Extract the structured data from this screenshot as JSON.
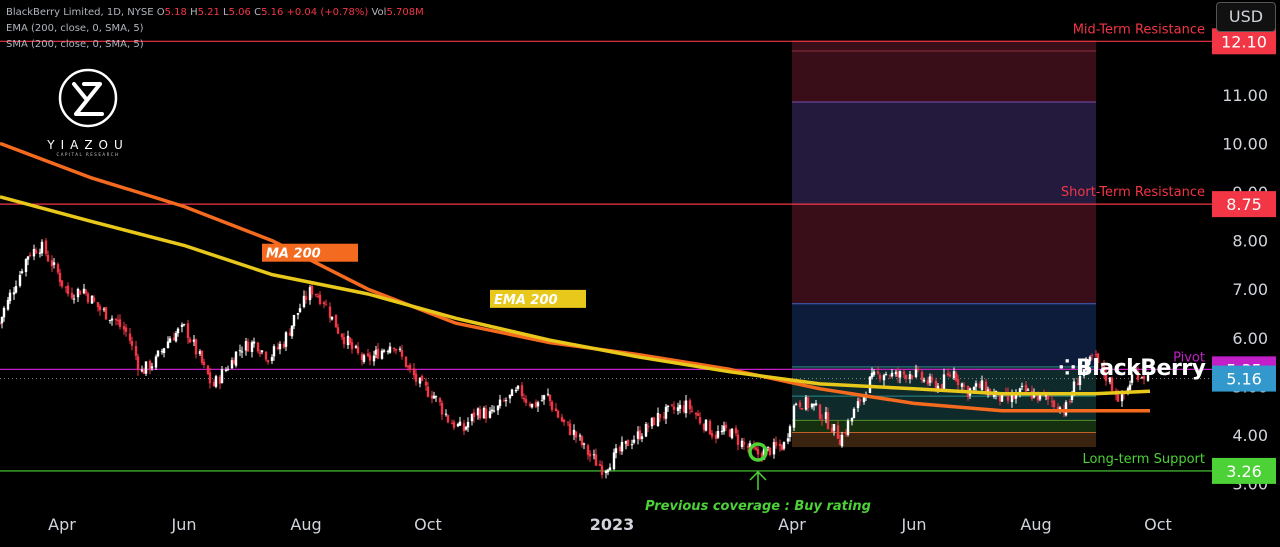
{
  "header": {
    "symbol": "BlackBerry Limited, 1D, NYSE",
    "o_label": "O",
    "o_value": "5.18",
    "h_label": "H",
    "h_value": "5.21",
    "l_label": "L",
    "l_value": "5.06",
    "c_label": "C",
    "c_value": "5.16",
    "change": "+0.04 (+0.78%)",
    "vol_label": "Vol",
    "vol_value": "5.708M",
    "ema_label": "EMA (200, close, 0, SMA, 5)",
    "sma_label": "SMA (200, close, 0, SMA, 5)"
  },
  "currency": "USD",
  "watermark": {
    "name": "YIAZOU",
    "sub": "CAPITAL RESEARCH"
  },
  "company_logo_text": "BlackBerry",
  "colors": {
    "background": "#000000",
    "up": "#ffffff",
    "down": "#f23645",
    "ema": "#e8c81a",
    "ma": "#f46a1e",
    "resistance": "#f23645",
    "support": "#4cd137",
    "pivot": "#c21fc8"
  },
  "chart_data": {
    "type": "candlestick",
    "x_ticks": [
      "Apr",
      "Jun",
      "Aug",
      "Oct",
      "2023",
      "Apr",
      "Jun",
      "Aug",
      "Oct"
    ],
    "x_tick_dates": [
      "2022-04-01",
      "2022-06-01",
      "2022-08-01",
      "2022-10-01",
      "2023-01-01",
      "2023-04-01",
      "2023-06-01",
      "2023-08-01",
      "2023-10-01"
    ],
    "y_ticks": [
      "3.00",
      "4.00",
      "5.00",
      "6.00",
      "7.00",
      "8.00",
      "9.00",
      "10.00",
      "11.00"
    ],
    "y_tick_values": [
      3,
      4,
      5,
      6,
      7,
      8,
      9,
      10,
      11
    ],
    "ylim": [
      2.6,
      12.95
    ],
    "xlim": [
      "2022-03-01",
      "2023-10-28"
    ],
    "close_path": [
      [
        "2022-03-01",
        6.3
      ],
      [
        "2022-03-08",
        7.0
      ],
      [
        "2022-03-15",
        7.7
      ],
      [
        "2022-03-22",
        7.9
      ],
      [
        "2022-03-29",
        7.4
      ],
      [
        "2022-04-05",
        6.9
      ],
      [
        "2022-04-12",
        7.0
      ],
      [
        "2022-04-20",
        6.6
      ],
      [
        "2022-04-27",
        6.4
      ],
      [
        "2022-05-04",
        6.1
      ],
      [
        "2022-05-11",
        5.3
      ],
      [
        "2022-05-18",
        5.5
      ],
      [
        "2022-05-25",
        6.0
      ],
      [
        "2022-06-02",
        6.2
      ],
      [
        "2022-06-09",
        5.6
      ],
      [
        "2022-06-16",
        5.0
      ],
      [
        "2022-06-23",
        5.4
      ],
      [
        "2022-06-30",
        5.8
      ],
      [
        "2022-07-07",
        5.9
      ],
      [
        "2022-07-14",
        5.6
      ],
      [
        "2022-07-21",
        5.9
      ],
      [
        "2022-07-28",
        6.5
      ],
      [
        "2022-08-04",
        7.0
      ],
      [
        "2022-08-10",
        6.8
      ],
      [
        "2022-08-17",
        6.2
      ],
      [
        "2022-08-24",
        5.8
      ],
      [
        "2022-08-31",
        5.5
      ],
      [
        "2022-09-07",
        5.7
      ],
      [
        "2022-09-14",
        5.9
      ],
      [
        "2022-09-21",
        5.4
      ],
      [
        "2022-09-28",
        5.0
      ],
      [
        "2022-10-05",
        4.8
      ],
      [
        "2022-10-12",
        4.3
      ],
      [
        "2022-10-19",
        4.1
      ],
      [
        "2022-10-26",
        4.5
      ],
      [
        "2022-11-02",
        4.4
      ],
      [
        "2022-11-09",
        4.7
      ],
      [
        "2022-11-16",
        4.9
      ],
      [
        "2022-11-23",
        4.6
      ],
      [
        "2022-11-30",
        4.8
      ],
      [
        "2022-12-07",
        4.3
      ],
      [
        "2022-12-14",
        4.0
      ],
      [
        "2022-12-21",
        3.6
      ],
      [
        "2022-12-28",
        3.3
      ],
      [
        "2023-01-04",
        3.6
      ],
      [
        "2023-01-11",
        3.9
      ],
      [
        "2023-01-18",
        4.1
      ],
      [
        "2023-01-25",
        4.4
      ],
      [
        "2023-02-01",
        4.5
      ],
      [
        "2023-02-08",
        4.6
      ],
      [
        "2023-02-15",
        4.3
      ],
      [
        "2023-02-22",
        4.0
      ],
      [
        "2023-03-01",
        4.1
      ],
      [
        "2023-03-08",
        3.8
      ],
      [
        "2023-03-15",
        3.6
      ],
      [
        "2023-03-22",
        3.7
      ],
      [
        "2023-03-29",
        3.8
      ],
      [
        "2023-04-03",
        4.7
      ],
      [
        "2023-04-12",
        4.6
      ],
      [
        "2023-04-19",
        4.3
      ],
      [
        "2023-04-26",
        3.9
      ],
      [
        "2023-05-03",
        4.5
      ],
      [
        "2023-05-10",
        5.1
      ],
      [
        "2023-05-17",
        5.3
      ],
      [
        "2023-05-24",
        5.2
      ],
      [
        "2023-05-31",
        5.3
      ],
      [
        "2023-06-07",
        5.1
      ],
      [
        "2023-06-14",
        5.0
      ],
      [
        "2023-06-21",
        5.3
      ],
      [
        "2023-06-28",
        4.9
      ],
      [
        "2023-07-05",
        5.0
      ],
      [
        "2023-07-12",
        4.8
      ],
      [
        "2023-07-19",
        4.7
      ],
      [
        "2023-07-26",
        4.9
      ],
      [
        "2023-08-02",
        4.8
      ],
      [
        "2023-08-09",
        4.7
      ],
      [
        "2023-08-16",
        4.5
      ],
      [
        "2023-08-23",
        5.2
      ],
      [
        "2023-08-30",
        5.6
      ],
      [
        "2023-09-06",
        5.2
      ],
      [
        "2023-09-13",
        4.7
      ],
      [
        "2023-09-20",
        5.3
      ],
      [
        "2023-09-27",
        5.2
      ]
    ],
    "series": [
      {
        "name": "MA 200",
        "points": [
          [
            "2022-03-01",
            10.0
          ],
          [
            "2022-04-15",
            9.3
          ],
          [
            "2022-06-01",
            8.7
          ],
          [
            "2022-07-15",
            8.0
          ],
          [
            "2022-09-01",
            7.0
          ],
          [
            "2022-10-15",
            6.3
          ],
          [
            "2022-12-01",
            5.9
          ],
          [
            "2023-01-15",
            5.65
          ],
          [
            "2023-03-01",
            5.35
          ],
          [
            "2023-04-15",
            4.95
          ],
          [
            "2023-06-01",
            4.65
          ],
          [
            "2023-07-15",
            4.5
          ],
          [
            "2023-08-30",
            4.5
          ],
          [
            "2023-09-27",
            4.5
          ]
        ]
      },
      {
        "name": "EMA 200",
        "points": [
          [
            "2022-03-01",
            8.9
          ],
          [
            "2022-04-15",
            8.4
          ],
          [
            "2022-06-01",
            7.9
          ],
          [
            "2022-07-15",
            7.3
          ],
          [
            "2022-09-01",
            6.9
          ],
          [
            "2022-10-15",
            6.4
          ],
          [
            "2022-12-01",
            5.95
          ],
          [
            "2023-01-15",
            5.6
          ],
          [
            "2023-03-01",
            5.3
          ],
          [
            "2023-04-15",
            5.05
          ],
          [
            "2023-06-01",
            4.95
          ],
          [
            "2023-07-15",
            4.85
          ],
          [
            "2023-08-30",
            4.85
          ],
          [
            "2023-09-27",
            4.9
          ]
        ]
      }
    ],
    "levels": [
      {
        "label": "Mid-Term Resistance",
        "value": 12.1,
        "price": "12.10",
        "kind": "resistance"
      },
      {
        "label": "Short-Term Resistance",
        "value": 8.75,
        "price": "8.75",
        "kind": "resistance"
      },
      {
        "label": "Pivot",
        "value": 5.35,
        "price": "5.35",
        "kind": "pivot"
      },
      {
        "label": "Long-term Support",
        "value": 3.26,
        "price": "3.26",
        "kind": "support"
      }
    ],
    "last_price": {
      "value": 5.16,
      "label": "5.16"
    },
    "indicator_labels": [
      {
        "text": "MA 200",
        "date": "2022-07-10",
        "value": 7.75
      },
      {
        "text": "EMA 200",
        "date": "2022-11-01",
        "value": 6.8
      }
    ],
    "fib_box": {
      "start": "2023-04-01",
      "end": "2023-08-31",
      "bands": [
        {
          "from": 11.9,
          "to": 12.1,
          "kind": "red"
        },
        {
          "from": 10.85,
          "to": 11.9,
          "kind": "red"
        },
        {
          "from": 8.75,
          "to": 10.85,
          "kind": "purple"
        },
        {
          "from": 6.7,
          "to": 8.75,
          "kind": "red"
        },
        {
          "from": 5.4,
          "to": 6.7,
          "kind": "blue"
        },
        {
          "from": 4.8,
          "to": 5.4,
          "kind": "teal"
        },
        {
          "from": 4.3,
          "to": 4.8,
          "kind": "teal"
        },
        {
          "from": 4.05,
          "to": 4.3,
          "kind": "green"
        },
        {
          "from": 3.75,
          "to": 4.05,
          "kind": "brown"
        }
      ]
    },
    "annotation": {
      "text": "Previous coverage : Buy rating",
      "date": "2023-03-15",
      "value": 3.65
    }
  }
}
